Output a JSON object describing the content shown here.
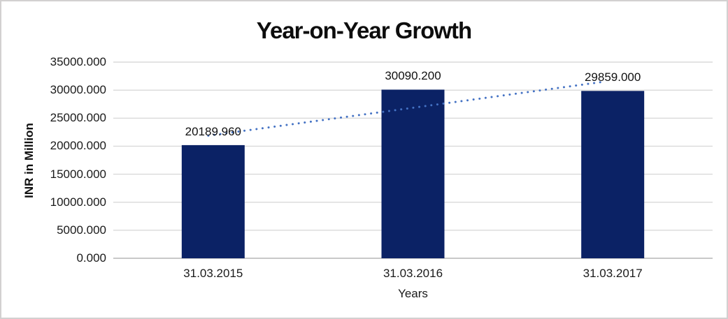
{
  "window": {
    "background": "#ffffff",
    "border_color": "#d2d0d0"
  },
  "chart_data": {
    "type": "bar",
    "title": "Year-on-Year Growth",
    "xlabel": "Years",
    "ylabel": "INR in Million",
    "categories": [
      "31.03.2015",
      "31.03.2016",
      "31.03.2017"
    ],
    "series": [
      {
        "name": "INR in Million",
        "values": [
          20189.96,
          30090.2,
          29859.0
        ]
      }
    ],
    "data_labels": [
      "20189.960",
      "30090.200",
      "29859.000"
    ],
    "ylim": [
      0,
      35000
    ],
    "ytick_step": 5000,
    "yticks": [
      0,
      5000,
      10000,
      15000,
      20000,
      25000,
      30000,
      35000
    ],
    "ytick_labels": [
      "0.000",
      "5000.000",
      "10000.000",
      "15000.000",
      "20000.000",
      "25000.000",
      "30000.000",
      "35000.000"
    ],
    "grid": "horizontal",
    "legend": "none",
    "bar_color": "#0b2265",
    "gridline_color": "#dadada",
    "axisline_color": "#c8c8c8",
    "label_color": "#1a1a1a",
    "trendline": {
      "type": "linear",
      "style": "dotted",
      "color": "#4472c4",
      "y_at_first": 21878.5,
      "y_at_last": 31547.6
    }
  }
}
